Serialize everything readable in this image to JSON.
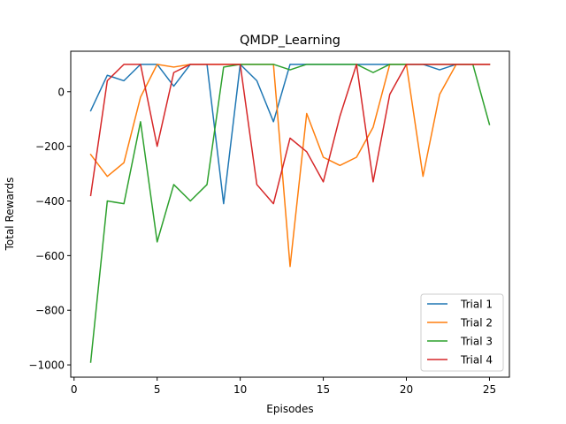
{
  "chart_data": {
    "type": "line",
    "title": "QMDP_Learning",
    "xlabel": "Episodes",
    "ylabel": "Total Rewards",
    "xlim": [
      -0.2,
      26.2
    ],
    "ylim": [
      -1045,
      148
    ],
    "xticks": [
      0,
      5,
      10,
      15,
      20,
      25
    ],
    "xtick_labels": [
      "0",
      "5",
      "10",
      "15",
      "20",
      "25"
    ],
    "yticks": [
      -1000,
      -800,
      -600,
      -400,
      -200,
      0
    ],
    "ytick_labels": [
      "−1000",
      "−800",
      "−600",
      "−400",
      "−200",
      "0"
    ],
    "grid": false,
    "legend_position": "lower-right",
    "x": [
      1,
      2,
      3,
      4,
      5,
      6,
      7,
      8,
      9,
      10,
      11,
      12,
      13,
      14,
      15,
      16,
      17,
      18,
      19,
      20,
      21,
      22,
      23,
      24,
      25
    ],
    "series": [
      {
        "name": "Trial 1",
        "color": "#1f77b4",
        "values": [
          -70,
          60,
          40,
          100,
          100,
          20,
          100,
          100,
          -410,
          100,
          40,
          -110,
          100,
          100,
          100,
          100,
          100,
          100,
          100,
          100,
          100,
          80,
          100,
          100,
          100
        ]
      },
      {
        "name": "Trial 2",
        "color": "#ff7f0e",
        "values": [
          -230,
          -310,
          -260,
          -20,
          100,
          90,
          100,
          100,
          100,
          100,
          100,
          100,
          -640,
          -80,
          -240,
          -270,
          -240,
          -130,
          100,
          100,
          -310,
          -10,
          100,
          100,
          100
        ]
      },
      {
        "name": "Trial 3",
        "color": "#2ca02c",
        "values": [
          -990,
          -400,
          -410,
          -110,
          -550,
          -340,
          -400,
          -340,
          90,
          100,
          100,
          100,
          80,
          100,
          100,
          100,
          100,
          70,
          100,
          100,
          100,
          100,
          100,
          100,
          -120
        ]
      },
      {
        "name": "Trial 4",
        "color": "#d62728",
        "values": [
          -380,
          40,
          100,
          100,
          -200,
          70,
          100,
          100,
          100,
          100,
          -340,
          -410,
          -170,
          -220,
          -330,
          -90,
          100,
          -330,
          -10,
          100,
          100,
          100,
          100,
          100,
          100
        ]
      }
    ]
  }
}
